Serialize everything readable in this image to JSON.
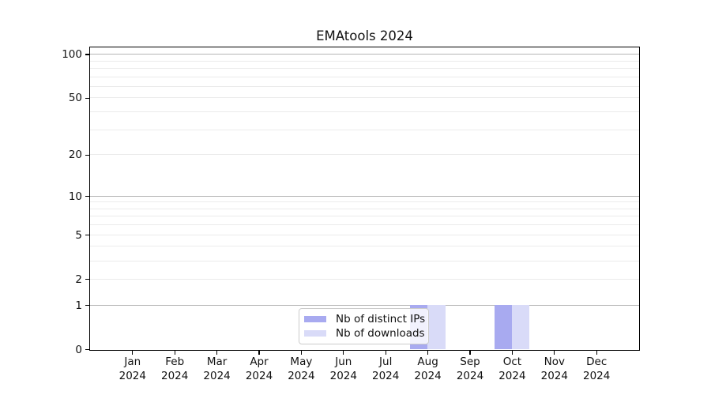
{
  "title": "EMAtools 2024",
  "chart_data": {
    "type": "bar",
    "title": "EMAtools 2024",
    "categories": [
      "Jan",
      "Feb",
      "Mar",
      "Apr",
      "May",
      "Jun",
      "Jul",
      "Aug",
      "Sep",
      "Oct",
      "Nov",
      "Dec"
    ],
    "x_year_label": "2024",
    "series": [
      {
        "name": "Nb of distinct IPs",
        "color": "#a8aaf0",
        "values": [
          0,
          0,
          0,
          0,
          0,
          0,
          0,
          1,
          0,
          1,
          0,
          0
        ]
      },
      {
        "name": "Nb of downloads",
        "color": "#d9dbf8",
        "values": [
          0,
          0,
          0,
          0,
          0,
          0,
          0,
          1,
          0,
          1,
          0,
          0
        ]
      }
    ],
    "ylabel": "",
    "xlabel": "",
    "y_axis": {
      "scale": "log1p",
      "range": [
        0,
        100
      ],
      "tick_values": [
        0,
        1,
        2,
        5,
        10,
        20,
        50,
        100
      ],
      "tick_labels": [
        "0",
        "1",
        "2",
        "5",
        "10",
        "20",
        "50",
        "100"
      ],
      "major_gridlines": [
        1,
        10,
        100
      ],
      "minor_gridlines": [
        2,
        3,
        4,
        5,
        6,
        7,
        8,
        9,
        20,
        30,
        40,
        50,
        60,
        70,
        80,
        90
      ]
    },
    "grid": true,
    "legend_position": "inside-bottom-center-left",
    "legend_framealpha": 0.84
  },
  "colors": {
    "background": "#ffffff",
    "spine": "#000000",
    "major_grid": "#b5b5b5",
    "minor_grid": "#ebebeb",
    "bar_distinct_ips": "#a8aaf0",
    "bar_downloads": "#d9dbf8",
    "legend_border": "#cccccc"
  }
}
